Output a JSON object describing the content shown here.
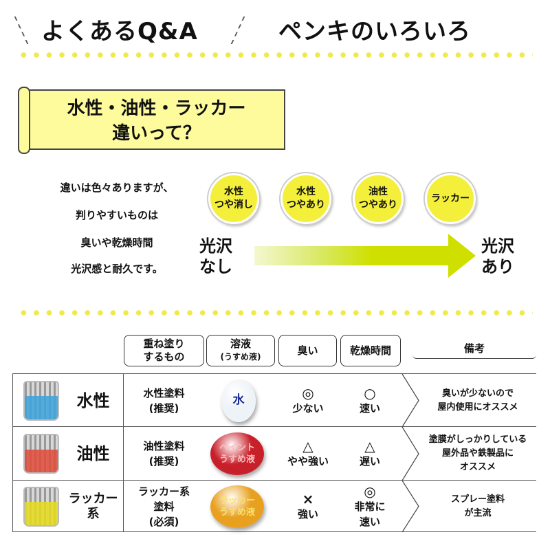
{
  "header": {
    "left_title": "よくあるQ&A",
    "right_title": "ペンキのいろいろ"
  },
  "banner": {
    "line1": "水性・油性・ラッカー",
    "line2": "違いって？"
  },
  "intro": [
    "違いは色々ありますが、",
    "判りやすいものは",
    "臭いや乾燥時間",
    "光沢感と耐久です。"
  ],
  "gloss": {
    "low": [
      "光沢",
      "なし"
    ],
    "high": [
      "光沢",
      "あり"
    ],
    "circles": [
      [
        "水性",
        "つや消し"
      ],
      [
        "水性",
        "つやあり"
      ],
      [
        "油性",
        "つやあり"
      ],
      [
        "ラッカー"
      ]
    ],
    "arrow_color": "#cfe000",
    "circle_color": "#f4ef3a"
  },
  "table": {
    "headers": [
      [
        "重ね塗り",
        "するもの"
      ],
      [
        "溶液",
        "(うすめ液)"
      ],
      [
        "臭い"
      ],
      [
        "乾燥時間"
      ],
      [
        "備考"
      ]
    ],
    "rows": [
      {
        "name": [
          "水性"
        ],
        "color": "#3ba3dc",
        "thinner_type": [
          "水性塗料",
          "(推奨)"
        ],
        "drop": [
          "水"
        ],
        "drop_color": "#eef3f8",
        "smell_mark": "◎",
        "smell": [
          "少ない"
        ],
        "dry_mark": "○",
        "dry": [
          "速い"
        ],
        "note": [
          "臭いが少ないので",
          "屋内使用にオススメ"
        ]
      },
      {
        "name": [
          "油性"
        ],
        "color": "#e04a3a",
        "thinner_type": [
          "油性塗料",
          "(推奨)"
        ],
        "drop": [
          "ペイント",
          "うすめ液"
        ],
        "drop_color": "#c8202a",
        "smell_mark": "△",
        "smell": [
          "やや強い"
        ],
        "dry_mark": "△",
        "dry": [
          "遅い"
        ],
        "note": [
          "塗膜がしっかりしている",
          "屋外品や鉄製品に",
          "オススメ"
        ]
      },
      {
        "name": [
          "ラッカー",
          "系"
        ],
        "color": "#e8dc1a",
        "thinner_type": [
          "ラッカー系",
          "塗料",
          "(必須)"
        ],
        "drop": [
          "ラッカー",
          "うすめ液"
        ],
        "drop_color": "#e8a020",
        "smell_mark": "×",
        "smell": [
          "強い"
        ],
        "dry_mark": "◎",
        "dry": [
          "非常に",
          "速い"
        ],
        "note": [
          "スプレー塗料",
          "が主流"
        ]
      }
    ]
  }
}
